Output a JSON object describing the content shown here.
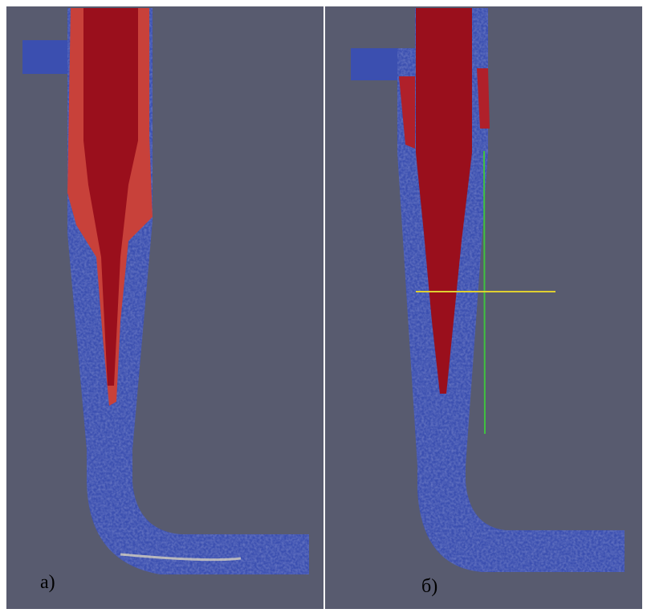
{
  "panels": [
    {
      "label": "а)"
    },
    {
      "label": "б)"
    }
  ]
}
